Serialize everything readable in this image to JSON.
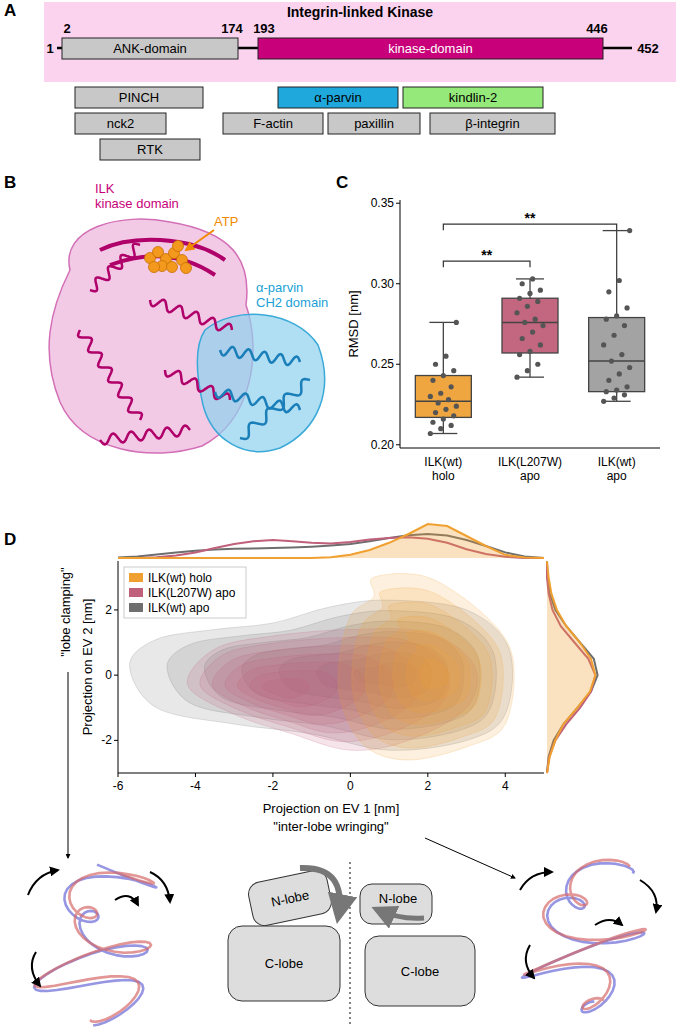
{
  "figure": {
    "panel_labels": [
      "A",
      "B",
      "C",
      "D"
    ],
    "domain_diagram": {
      "title": "Integrin-linked Kinase",
      "start": 1,
      "end": 452,
      "domains": [
        {
          "label": "ANK-domain",
          "start": 2,
          "end": 174,
          "color": "#c8c8c8"
        },
        {
          "label": "kinase-domain",
          "start": 193,
          "end": 446,
          "color": "#c8007a"
        }
      ],
      "partners": [
        {
          "label": "PINCH",
          "color": "#c8c8c8"
        },
        {
          "label": "nck2",
          "color": "#c8c8c8"
        },
        {
          "label": "RTK",
          "color": "#c8c8c8"
        },
        {
          "label": "α-parvin",
          "color": "#1fa8dc"
        },
        {
          "label": "F-actin",
          "color": "#c8c8c8"
        },
        {
          "label": "paxillin",
          "color": "#c8c8c8"
        },
        {
          "label": "kindlin-2",
          "color": "#95e87a"
        },
        {
          "label": "β-integrin",
          "color": "#c8c8c8"
        }
      ]
    },
    "structure_labels": [
      {
        "text": "ILK",
        "color": "#c8007a"
      },
      {
        "text": "kinase domain",
        "color": "#c8007a"
      },
      {
        "text": "ATP",
        "color": "#f08a00"
      },
      {
        "text": "α-parvin",
        "color": "#1a9fd6"
      },
      {
        "text": "CH2 domain",
        "color": "#1a9fd6"
      }
    ],
    "lobe_diagrams": [
      {
        "n_label": "N-lobe",
        "c_label": "C-lobe"
      },
      {
        "n_label": "N-lobe",
        "c_label": "C-lobe"
      }
    ]
  },
  "chart_data": [
    {
      "type": "box",
      "ylabel": "RMSD [nm]",
      "categories": [
        "ILK(wt) holo",
        "ILK(L207W) apo",
        "ILK(wt) apo"
      ],
      "colors": [
        "#f0a640",
        "#c2677f",
        "#a3a3a3"
      ],
      "ylim": [
        0.198,
        0.352
      ],
      "yticks": [
        {
          "value": 0.2,
          "label": "0.20"
        },
        {
          "value": 0.25,
          "label": "0.25"
        },
        {
          "value": 0.3,
          "label": "0.30"
        },
        {
          "value": 0.35,
          "label": "0.35"
        }
      ],
      "boxes": [
        {
          "whisker_low": 0.207,
          "q1": 0.217,
          "median": 0.227,
          "q3": 0.243,
          "whisker_high": 0.276
        },
        {
          "whisker_low": 0.242,
          "q1": 0.257,
          "median": 0.276,
          "q3": 0.291,
          "whisker_high": 0.303
        },
        {
          "whisker_low": 0.227,
          "q1": 0.233,
          "median": 0.252,
          "q3": 0.279,
          "whisker_high": 0.333
        }
      ],
      "points": [
        [
          0.207,
          0.21,
          0.212,
          0.214,
          0.216,
          0.218,
          0.22,
          0.222,
          0.224,
          0.226,
          0.228,
          0.23,
          0.232,
          0.236,
          0.24,
          0.243,
          0.246,
          0.25,
          0.255,
          0.276
        ],
        [
          0.242,
          0.246,
          0.25,
          0.256,
          0.258,
          0.262,
          0.266,
          0.27,
          0.274,
          0.276,
          0.278,
          0.282,
          0.286,
          0.289,
          0.291,
          0.294,
          0.296,
          0.3,
          0.303
        ],
        [
          0.227,
          0.229,
          0.231,
          0.233,
          0.234,
          0.236,
          0.24,
          0.244,
          0.248,
          0.252,
          0.256,
          0.262,
          0.268,
          0.274,
          0.278,
          0.28,
          0.285,
          0.295,
          0.302,
          0.333
        ]
      ],
      "annotations": [
        {
          "text": "**",
          "from": 0,
          "to": 1,
          "y": 0.314
        },
        {
          "text": "**",
          "from": 0,
          "to": 2,
          "y": 0.337
        }
      ]
    },
    {
      "type": "density",
      "xlabel": "Projection on EV 1 [nm]",
      "ylabel": "Projection on EV 2 [nm]",
      "axis_notes": {
        "x": "\"inter-lobe wringing\"",
        "y": "\"lobe clamping\""
      },
      "xlim": [
        -6,
        5
      ],
      "ylim": [
        -3,
        3.5
      ],
      "xticks": [
        -6,
        -4,
        -2,
        0,
        2,
        4
      ],
      "yticks": [
        -2,
        0,
        2
      ],
      "legend": "upper left",
      "x_grid": [
        -6,
        -5.5,
        -5,
        -4.5,
        -4,
        -3.5,
        -3,
        -2.5,
        -2,
        -1.5,
        -1,
        -0.5,
        0,
        0.5,
        1,
        1.5,
        2,
        2.5,
        3,
        3.5,
        4,
        4.5,
        5
      ],
      "y_grid": [
        -3,
        -2.5,
        -2,
        -1.5,
        -1,
        -0.5,
        0,
        0.5,
        1,
        1.5,
        2,
        2.5,
        3,
        3.5
      ],
      "series": [
        {
          "name": "ILK(wt) holo",
          "color": "#f0a030",
          "peak": {
            "x": 2.2,
            "y": 0
          },
          "contour": {
            "x": [
              -0.3,
              0,
              0.6,
              0.6,
              2,
              3.5,
              4.2,
              4,
              3,
              1.5,
              0.4,
              -0.2
            ],
            "y": [
              0.3,
              1.8,
              2.4,
              3,
              3,
              1.8,
              0.5,
              -1.5,
              -2.2,
              -2.6,
              -2.2,
              -1
            ]
          },
          "x_density": [
            0,
            0,
            0,
            0,
            0,
            0,
            0,
            0,
            0,
            0,
            0,
            0.02,
            0.08,
            0.2,
            0.38,
            0.6,
            0.85,
            0.8,
            0.55,
            0.3,
            0.08,
            0.01,
            0
          ],
          "y_density": [
            0,
            0.05,
            0.15,
            0.3,
            0.55,
            0.78,
            0.88,
            0.8,
            0.6,
            0.35,
            0.18,
            0.08,
            0.03,
            0
          ]
        },
        {
          "name": "ILK(L207W) apo",
          "color": "#c0607a",
          "peak": {
            "x": -1.9,
            "y": -0.4
          },
          "contour": {
            "x": [
              -4.2,
              -3.5,
              -2,
              0,
              2,
              3.2,
              3,
              1.5,
              0,
              -1.5,
              -3
            ],
            "y": [
              -0.3,
              0.8,
              1.2,
              1.4,
              1.3,
              0.3,
              -1,
              -2,
              -2.3,
              -1.8,
              -1.2
            ]
          },
          "x_density": [
            0,
            0,
            0.02,
            0.06,
            0.14,
            0.25,
            0.35,
            0.42,
            0.45,
            0.42,
            0.38,
            0.36,
            0.4,
            0.46,
            0.5,
            0.52,
            0.48,
            0.38,
            0.22,
            0.1,
            0.03,
            0,
            0
          ],
          "y_density": [
            0,
            0.04,
            0.15,
            0.35,
            0.6,
            0.8,
            0.88,
            0.75,
            0.5,
            0.25,
            0.1,
            0.03,
            0,
            0
          ]
        },
        {
          "name": "ILK(wt) apo",
          "color": "#6e6e6e",
          "peak": {
            "x": 1.2,
            "y": 0
          },
          "contour": {
            "x": [
              -5.7,
              -5,
              -3.5,
              -2,
              -0.5,
              1,
              3,
              4.1,
              4,
              3,
              1,
              -1,
              -3,
              -5
            ],
            "y": [
              0.3,
              1.1,
              1.4,
              1.6,
              2.1,
              2.3,
              2,
              0.8,
              -1.2,
              -2,
              -2.3,
              -1.8,
              -1.5,
              -1
            ]
          },
          "x_density": [
            0.01,
            0.04,
            0.09,
            0.14,
            0.18,
            0.21,
            0.23,
            0.24,
            0.25,
            0.26,
            0.28,
            0.31,
            0.35,
            0.42,
            0.5,
            0.57,
            0.6,
            0.56,
            0.45,
            0.3,
            0.14,
            0.04,
            0
          ],
          "y_density": [
            0,
            0.03,
            0.12,
            0.3,
            0.55,
            0.8,
            0.92,
            0.85,
            0.6,
            0.35,
            0.15,
            0.05,
            0.01,
            0
          ]
        }
      ]
    }
  ]
}
